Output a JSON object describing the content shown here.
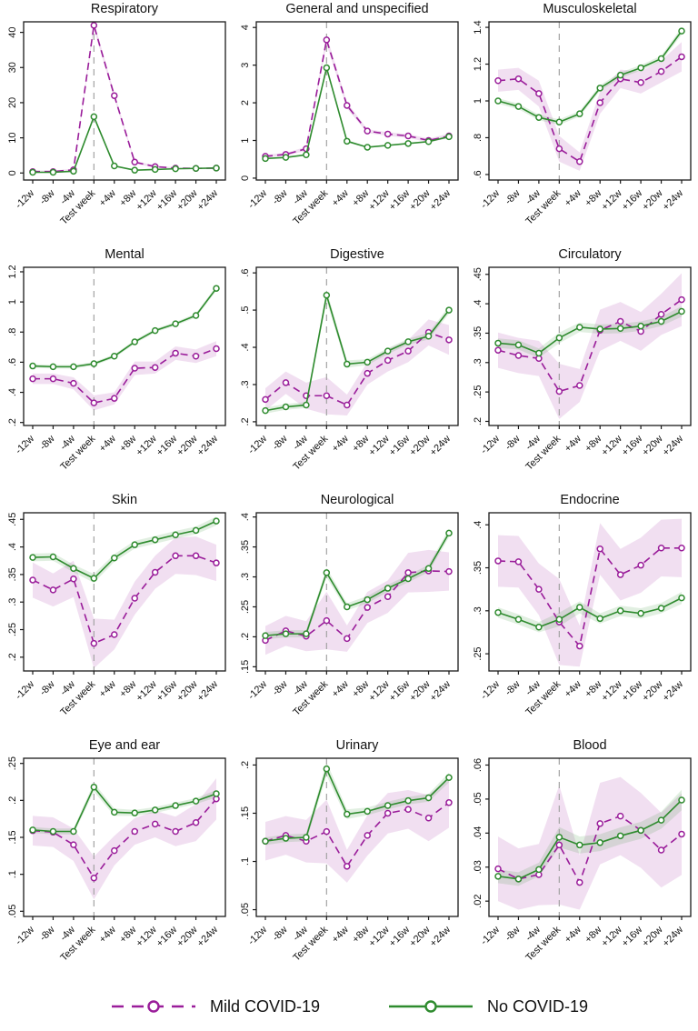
{
  "figure": {
    "title": "",
    "legend_items": [
      {
        "label": "Mild COVID-19",
        "color": "#9A1D9A",
        "style": "dashed"
      },
      {
        "label": "No COVID-19",
        "color": "#2E8B2E",
        "style": "solid"
      }
    ]
  },
  "colors": {
    "mild_line": "#9A1D9A",
    "no_line": "#2E8B2E",
    "mild_band": "#9A1D9A",
    "no_band": "#2E8B2E",
    "ref_line": "#A3A3A3",
    "axis": "#1A1A1A",
    "title_text": "#111111"
  },
  "chart_data": {
    "type": "line",
    "categories": [
      "-12w",
      "-8w",
      "-4w",
      "Test week",
      "+4w",
      "+8w",
      "+12w",
      "+16w",
      "+20w",
      "+24w"
    ],
    "ref_index": 3,
    "legend_position": "bottom",
    "series_names": [
      "Mild COVID-19",
      "No COVID-19"
    ],
    "panels": [
      {
        "title": "Respiratory",
        "ylim": [
          -2,
          43
        ],
        "ytick_vals": [
          0,
          10,
          20,
          30,
          40
        ],
        "ytick_labels": [
          "0",
          "10",
          "20",
          "30",
          "40"
        ],
        "series": [
          {
            "name": "Mild COVID-19",
            "values": [
              0.4,
              0.4,
              0.9,
              42,
              22,
              3.1,
              1.8,
              1.4,
              1.3,
              1.4
            ],
            "band_hw": [
              0.3,
              0.3,
              0.3,
              1.0,
              0.8,
              0.4,
              0.3,
              0.2,
              0.2,
              0.2
            ]
          },
          {
            "name": "No COVID-19",
            "values": [
              0.2,
              0.2,
              0.5,
              16,
              2.0,
              0.8,
              1.0,
              1.2,
              1.3,
              1.4
            ],
            "band_hw": [
              0.15,
              0.15,
              0.15,
              0.5,
              0.2,
              0.1,
              0.1,
              0.1,
              0.1,
              0.1
            ]
          }
        ]
      },
      {
        "title": "General and unspecified",
        "ylim": [
          -0.05,
          4.15
        ],
        "ytick_vals": [
          0,
          1,
          2,
          3,
          4
        ],
        "ytick_labels": [
          "0",
          "1",
          "2",
          "3",
          "4"
        ],
        "series": [
          {
            "name": "Mild COVID-19",
            "values": [
              0.58,
              0.63,
              0.78,
              3.67,
              1.93,
              1.25,
              1.17,
              1.12,
              1.0,
              1.12
            ],
            "band_hw": [
              0.04,
              0.04,
              0.05,
              0.12,
              0.08,
              0.05,
              0.05,
              0.05,
              0.05,
              0.06
            ]
          },
          {
            "name": "No COVID-19",
            "values": [
              0.52,
              0.55,
              0.62,
              2.93,
              0.98,
              0.82,
              0.87,
              0.92,
              0.97,
              1.1
            ],
            "band_hw": [
              0.02,
              0.02,
              0.02,
              0.06,
              0.03,
              0.02,
              0.02,
              0.02,
              0.02,
              0.03
            ]
          }
        ]
      },
      {
        "title": "Musculoskeletal",
        "ylim": [
          0.57,
          1.43
        ],
        "ytick_vals": [
          0.6,
          0.8,
          1.0,
          1.2,
          1.4
        ],
        "ytick_labels": [
          ".6",
          ".8",
          "1",
          "1.2",
          "1.4"
        ],
        "series": [
          {
            "name": "Mild COVID-19",
            "values": [
              1.11,
              1.12,
              1.04,
              0.74,
              0.67,
              0.99,
              1.12,
              1.1,
              1.16,
              1.24
            ],
            "band_hw": [
              0.06,
              0.06,
              0.07,
              0.07,
              0.05,
              0.06,
              0.05,
              0.06,
              0.06,
              0.08
            ]
          },
          {
            "name": "No COVID-19",
            "values": [
              1.0,
              0.97,
              0.91,
              0.885,
              0.93,
              1.07,
              1.14,
              1.18,
              1.23,
              1.38
            ],
            "band_hw": [
              0.015,
              0.015,
              0.015,
              0.015,
              0.015,
              0.015,
              0.015,
              0.015,
              0.015,
              0.02
            ]
          }
        ]
      },
      {
        "title": "Mental",
        "ylim": [
          0.18,
          1.23
        ],
        "ytick_vals": [
          0.2,
          0.4,
          0.6,
          0.8,
          1.0,
          1.2
        ],
        "ytick_labels": [
          ".2",
          ".4",
          ".6",
          ".8",
          "1",
          "1.2"
        ],
        "series": [
          {
            "name": "Mild COVID-19",
            "values": [
              0.49,
              0.49,
              0.46,
              0.33,
              0.36,
              0.56,
              0.565,
              0.66,
              0.64,
              0.69
            ],
            "band_hw": [
              0.035,
              0.035,
              0.04,
              0.05,
              0.04,
              0.045,
              0.04,
              0.045,
              0.045,
              0.05
            ]
          },
          {
            "name": "No COVID-19",
            "values": [
              0.575,
              0.57,
              0.57,
              0.59,
              0.64,
              0.735,
              0.81,
              0.855,
              0.91,
              1.09
            ],
            "band_hw": [
              0.012,
              0.012,
              0.012,
              0.012,
              0.012,
              0.012,
              0.012,
              0.012,
              0.014,
              0.016
            ]
          }
        ]
      },
      {
        "title": "Digestive",
        "ylim": [
          0.19,
          0.615
        ],
        "ytick_vals": [
          0.2,
          0.3,
          0.4,
          0.5,
          0.6
        ],
        "ytick_labels": [
          ".2",
          ".3",
          ".4",
          ".5",
          ".6"
        ],
        "series": [
          {
            "name": "Mild COVID-19",
            "values": [
              0.26,
              0.305,
              0.27,
              0.27,
              0.245,
              0.33,
              0.365,
              0.39,
              0.44,
              0.42
            ],
            "band_hw": [
              0.03,
              0.03,
              0.035,
              0.05,
              0.028,
              0.03,
              0.03,
              0.03,
              0.035,
              0.04
            ]
          },
          {
            "name": "No COVID-19",
            "values": [
              0.23,
              0.24,
              0.245,
              0.54,
              0.355,
              0.36,
              0.39,
              0.415,
              0.43,
              0.5
            ],
            "band_hw": [
              0.008,
              0.008,
              0.008,
              0.015,
              0.01,
              0.008,
              0.008,
              0.008,
              0.009,
              0.01
            ]
          }
        ]
      },
      {
        "title": "Circulatory",
        "ylim": [
          0.193,
          0.462
        ],
        "ytick_vals": [
          0.2,
          0.25,
          0.3,
          0.35,
          0.4,
          0.45
        ],
        "ytick_labels": [
          ".2",
          ".25",
          ".3",
          ".35",
          ".4",
          ".45"
        ],
        "series": [
          {
            "name": "Mild COVID-19",
            "values": [
              0.321,
              0.312,
              0.307,
              0.251,
              0.261,
              0.355,
              0.37,
              0.353,
              0.382,
              0.407
            ],
            "band_hw": [
              0.03,
              0.03,
              0.03,
              0.047,
              0.028,
              0.035,
              0.033,
              0.033,
              0.035,
              0.045
            ]
          },
          {
            "name": "No COVID-19",
            "values": [
              0.333,
              0.33,
              0.316,
              0.342,
              0.36,
              0.357,
              0.358,
              0.362,
              0.37,
              0.387
            ],
            "band_hw": [
              0.008,
              0.008,
              0.008,
              0.009,
              0.008,
              0.008,
              0.008,
              0.008,
              0.008,
              0.009
            ]
          }
        ]
      },
      {
        "title": "Skin",
        "ylim": [
          0.175,
          0.462
        ],
        "ytick_vals": [
          0.2,
          0.25,
          0.3,
          0.35,
          0.4,
          0.45
        ],
        "ytick_labels": [
          ".2",
          ".25",
          ".3",
          ".35",
          ".4",
          ".45"
        ],
        "series": [
          {
            "name": "Mild COVID-19",
            "values": [
              0.34,
              0.322,
              0.342,
              0.225,
              0.241,
              0.307,
              0.354,
              0.384,
              0.384,
              0.371
            ],
            "band_hw": [
              0.032,
              0.03,
              0.033,
              0.045,
              0.027,
              0.03,
              0.03,
              0.033,
              0.035,
              0.033
            ]
          },
          {
            "name": "No COVID-19",
            "values": [
              0.381,
              0.382,
              0.361,
              0.343,
              0.38,
              0.404,
              0.413,
              0.422,
              0.43,
              0.447
            ],
            "band_hw": [
              0.007,
              0.007,
              0.007,
              0.008,
              0.007,
              0.007,
              0.007,
              0.007,
              0.007,
              0.008
            ]
          }
        ]
      },
      {
        "title": "Neurological",
        "ylim": [
          0.143,
          0.407
        ],
        "ytick_vals": [
          0.15,
          0.2,
          0.25,
          0.3,
          0.35,
          0.4
        ],
        "ytick_labels": [
          ".15",
          ".2",
          ".25",
          ".3",
          ".35",
          ".4"
        ],
        "series": [
          {
            "name": "Mild COVID-19",
            "values": [
              0.194,
              0.21,
              0.201,
              0.227,
              0.197,
              0.249,
              0.267,
              0.307,
              0.31,
              0.309
            ],
            "band_hw": [
              0.024,
              0.025,
              0.025,
              0.048,
              0.022,
              0.026,
              0.027,
              0.033,
              0.035,
              0.032
            ]
          },
          {
            "name": "No COVID-19",
            "values": [
              0.202,
              0.205,
              0.205,
              0.307,
              0.25,
              0.262,
              0.281,
              0.297,
              0.314,
              0.373
            ],
            "band_hw": [
              0.006,
              0.006,
              0.006,
              0.008,
              0.006,
              0.006,
              0.006,
              0.006,
              0.006,
              0.007
            ]
          }
        ]
      },
      {
        "title": "Endocrine",
        "ylim": [
          0.23,
          0.414
        ],
        "ytick_vals": [
          0.25,
          0.3,
          0.35,
          0.4
        ],
        "ytick_labels": [
          ".25",
          ".3",
          ".35",
          ".4"
        ],
        "series": [
          {
            "name": "Mild COVID-19",
            "values": [
              0.358,
              0.357,
              0.325,
              0.287,
              0.259,
              0.372,
              0.342,
              0.353,
              0.373,
              0.373
            ],
            "band_hw": [
              0.03,
              0.03,
              0.03,
              0.05,
              0.024,
              0.03,
              0.03,
              0.032,
              0.033,
              0.034
            ]
          },
          {
            "name": "No COVID-19",
            "values": [
              0.298,
              0.29,
              0.281,
              0.29,
              0.304,
              0.291,
              0.3,
              0.297,
              0.303,
              0.315
            ],
            "band_hw": [
              0.006,
              0.006,
              0.006,
              0.008,
              0.007,
              0.006,
              0.006,
              0.006,
              0.006,
              0.007
            ]
          }
        ]
      },
      {
        "title": "Eye and ear",
        "ylim": [
          0.043,
          0.257
        ],
        "ytick_vals": [
          0.05,
          0.1,
          0.15,
          0.2,
          0.25
        ],
        "ytick_labels": [
          ".05",
          ".1",
          ".15",
          ".2",
          ".25"
        ],
        "series": [
          {
            "name": "Mild COVID-19",
            "values": [
              0.159,
              0.157,
              0.14,
              0.095,
              0.132,
              0.158,
              0.168,
              0.158,
              0.17,
              0.202
            ],
            "band_hw": [
              0.02,
              0.02,
              0.022,
              0.029,
              0.02,
              0.018,
              0.018,
              0.02,
              0.025,
              0.028
            ]
          },
          {
            "name": "No COVID-19",
            "values": [
              0.16,
              0.158,
              0.158,
              0.218,
              0.184,
              0.183,
              0.187,
              0.193,
              0.199,
              0.209
            ],
            "band_hw": [
              0.004,
              0.004,
              0.004,
              0.006,
              0.005,
              0.004,
              0.004,
              0.004,
              0.004,
              0.005
            ]
          }
        ]
      },
      {
        "title": "Urinary",
        "ylim": [
          0.043,
          0.207
        ],
        "ytick_vals": [
          0.05,
          0.1,
          0.15,
          0.2
        ],
        "ytick_labels": [
          ".05",
          ".1",
          ".15",
          ".2"
        ],
        "series": [
          {
            "name": "Mild COVID-19",
            "values": [
              0.121,
              0.127,
              0.121,
              0.131,
              0.095,
              0.127,
              0.15,
              0.154,
              0.145,
              0.161
            ],
            "band_hw": [
              0.02,
              0.02,
              0.022,
              0.033,
              0.017,
              0.021,
              0.021,
              0.02,
              0.024,
              0.026
            ]
          },
          {
            "name": "No COVID-19",
            "values": [
              0.121,
              0.124,
              0.125,
              0.196,
              0.149,
              0.152,
              0.158,
              0.163,
              0.166,
              0.187
            ],
            "band_hw": [
              0.004,
              0.004,
              0.004,
              0.007,
              0.005,
              0.004,
              0.004,
              0.004,
              0.004,
              0.005
            ]
          }
        ]
      },
      {
        "title": "Blood",
        "ylim": [
          0.0155,
          0.062
        ],
        "ytick_vals": [
          0.02,
          0.03,
          0.04,
          0.05,
          0.06
        ],
        "ytick_labels": [
          ".02",
          ".03",
          ".04",
          ".05",
          ".06"
        ],
        "series": [
          {
            "name": "Mild COVID-19",
            "values": [
              0.0295,
              0.0265,
              0.0278,
              0.0365,
              0.0255,
              0.0428,
              0.045,
              0.0408,
              0.035,
              0.0397
            ],
            "band_hw": [
              0.0095,
              0.009,
              0.009,
              0.0175,
              0.008,
              0.012,
              0.0115,
              0.011,
              0.011,
              0.012
            ]
          },
          {
            "name": "No COVID-19",
            "values": [
              0.0273,
              0.0265,
              0.0293,
              0.0388,
              0.0365,
              0.0372,
              0.0392,
              0.0408,
              0.0438,
              0.0497
            ],
            "band_hw": [
              0.002,
              0.002,
              0.002,
              0.003,
              0.0025,
              0.0025,
              0.0025,
              0.0025,
              0.0025,
              0.003
            ]
          }
        ]
      }
    ]
  }
}
